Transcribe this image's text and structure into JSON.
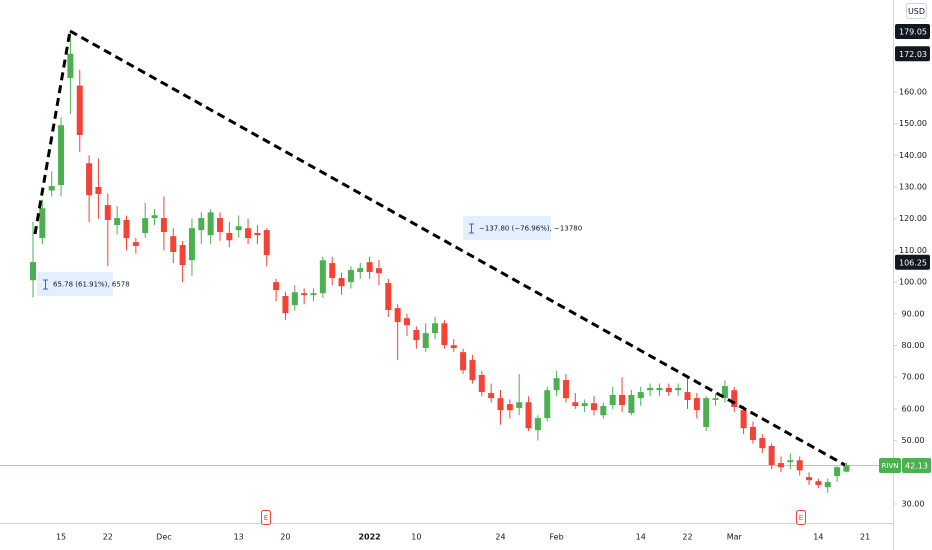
{
  "chart_data": {
    "type": "candlestick",
    "currency": "USD",
    "symbol": "RIVN",
    "categories": [
      null,
      null,
      null,
      "15",
      null,
      null,
      null,
      null,
      "22",
      null,
      null,
      null,
      null,
      null,
      "Dec",
      null,
      null,
      null,
      null,
      null,
      null,
      null,
      "13",
      null,
      null,
      null,
      null,
      "20",
      null,
      null,
      null,
      null,
      null,
      null,
      null,
      null,
      "2022",
      null,
      null,
      null,
      null,
      "10",
      null,
      null,
      null,
      null,
      null,
      null,
      null,
      null,
      "24",
      null,
      null,
      null,
      null,
      null,
      "Feb",
      null,
      null,
      null,
      null,
      null,
      null,
      null,
      null,
      "14",
      null,
      null,
      null,
      null,
      "22",
      null,
      null,
      null,
      null,
      "Mar",
      null,
      null,
      null,
      null,
      null,
      null,
      null,
      null,
      "14",
      null,
      null,
      null,
      null,
      "21"
    ],
    "open": [
      100.6,
      113.9,
      128.9,
      130.6,
      164.4,
      162,
      137.5,
      130,
      124.3,
      118,
      119.6,
      112.6,
      115.5,
      120.2,
      120.2,
      114.5,
      111.7,
      106.9,
      116.4,
      114.8,
      120.2,
      115.5,
      116.4,
      117,
      115.5,
      116.4,
      100,
      95.6,
      92.7,
      96.5,
      95.9,
      96.5,
      106,
      101.3,
      100,
      103.2,
      106.3,
      104.4,
      99.7,
      91.8,
      88.6,
      84.9,
      79.2,
      83.9,
      87,
      80.1,
      77.9,
      75.4,
      70.7,
      65,
      63.4,
      61.5,
      60.3,
      62.1,
      53.3,
      57.1,
      65.9,
      69.1,
      62.1,
      60.9,
      61.8,
      58,
      61.2,
      64.4,
      58.7,
      63.4,
      65.9,
      65.9,
      66.6,
      65.9,
      65.3,
      63.4,
      54.3,
      62.8,
      63.4,
      65.9,
      59.6,
      54.3,
      50.8,
      48.3,
      42.9,
      43.2,
      43.8,
      38.5,
      37.2,
      35.3,
      38.8,
      40.2,
      null,
      null
    ],
    "high": [
      119,
      126,
      135,
      152,
      179.05,
      167,
      140,
      139,
      128,
      124,
      121,
      114,
      125,
      123,
      127,
      117,
      113,
      120,
      122,
      123,
      122,
      119,
      121,
      120,
      118,
      117,
      101,
      97,
      99,
      98,
      98,
      108,
      108,
      103,
      105,
      106,
      108,
      107,
      101,
      93,
      90,
      86,
      87,
      89,
      88,
      82,
      79,
      77,
      72,
      68,
      66,
      63,
      71,
      64,
      58,
      67,
      72,
      71,
      65,
      63,
      64,
      62,
      67,
      70,
      66,
      67,
      68,
      68,
      68,
      68,
      70,
      65,
      64,
      65,
      69,
      67,
      61,
      56,
      52,
      49,
      45,
      46,
      45,
      40,
      38,
      38,
      42,
      43,
      null,
      null
    ],
    "low": [
      95.2,
      112,
      127,
      127,
      153,
      141,
      119,
      120,
      105,
      115,
      110,
      109,
      114,
      118,
      110,
      106,
      100,
      102,
      112,
      112,
      113,
      111,
      114,
      112,
      112,
      105,
      94,
      88,
      91,
      93,
      94,
      95,
      99,
      96,
      98,
      101,
      101,
      99,
      89,
      75.4,
      83,
      79,
      78,
      82,
      79,
      78,
      71,
      68,
      64,
      62,
      55,
      57,
      58,
      53,
      50,
      56,
      64,
      62,
      60,
      59,
      58,
      57,
      60,
      59,
      58,
      61,
      64,
      64,
      64,
      64,
      60,
      57,
      53,
      61,
      62,
      59,
      52,
      49,
      46,
      41,
      40,
      41,
      39,
      36,
      35,
      33.5,
      37,
      40,
      null,
      null
    ],
    "close": [
      106.3,
      123.3,
      130.3,
      149.5,
      172.03,
      146.4,
      127.4,
      127.8,
      119.6,
      120.2,
      113.9,
      111.4,
      120.2,
      121.1,
      115.8,
      109.5,
      105.4,
      117,
      120.2,
      122,
      115.8,
      113.2,
      117.6,
      113.9,
      114.8,
      108.5,
      97.5,
      90.2,
      96.8,
      95.9,
      96.5,
      106.9,
      101.3,
      98.7,
      103.8,
      104.4,
      103.2,
      102.8,
      91.2,
      87.4,
      86.4,
      81.7,
      83.9,
      87,
      80.1,
      79.2,
      72.2,
      69.1,
      65.3,
      63.4,
      59.6,
      59.6,
      62.1,
      53.9,
      57.1,
      65.9,
      69.7,
      63.4,
      60.9,
      61.8,
      59.6,
      60.9,
      64.4,
      61.2,
      64.4,
      65.3,
      66.6,
      66.6,
      65.3,
      66.6,
      62.8,
      59.6,
      63.4,
      63.4,
      67.2,
      60.6,
      53.9,
      50.2,
      47.6,
      42.3,
      41.6,
      43.8,
      40.6,
      37.5,
      36,
      36.9,
      41.6,
      42.13,
      null,
      null
    ],
    "up_color": "#4caf50",
    "down_color": "#f44336",
    "ylim": [
      24,
      189
    ],
    "yticks": [
      {
        "value": 30,
        "label": "30.00"
      },
      {
        "value": 50,
        "label": "50.00"
      },
      {
        "value": 60,
        "label": "60.00"
      },
      {
        "value": 70,
        "label": "70.00"
      },
      {
        "value": 80,
        "label": "80.00"
      },
      {
        "value": 90,
        "label": "90.00"
      },
      {
        "value": 100,
        "label": "100.00"
      },
      {
        "value": 110,
        "label": "110.00"
      },
      {
        "value": 120,
        "label": "120.00"
      },
      {
        "value": 130,
        "label": "130.00"
      },
      {
        "value": 140,
        "label": "140.00"
      },
      {
        "value": 150,
        "label": "150.00"
      },
      {
        "value": 160,
        "label": "160.00"
      }
    ],
    "price_markers": [
      179.05,
      172.03,
      106.25
    ],
    "last_price": 42.13,
    "measurements": [
      "65.78 (61.91%), 6578",
      "−137.80 (−76.96%), −13780"
    ],
    "events": [
      "E",
      "E"
    ]
  }
}
